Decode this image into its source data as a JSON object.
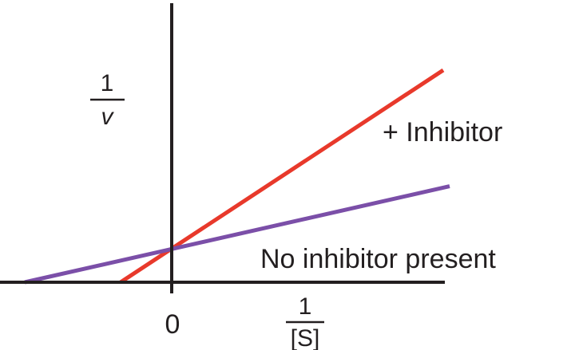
{
  "chart_data": {
    "type": "line",
    "title": "",
    "xlabel": {
      "numerator": "1",
      "denominator": "[S]"
    },
    "ylabel": {
      "numerator": "1",
      "denominator": "v"
    },
    "x_tick_labels": [
      "0"
    ],
    "xlim": [
      -0.55,
      0.85
    ],
    "ylim": [
      0,
      1.0
    ],
    "grid": false,
    "legend": "none (series labeled inline)",
    "series": [
      {
        "name": "+ Inhibitor",
        "color": "#e8392b",
        "x": [
          -0.16,
          0.85
        ],
        "y": [
          0,
          0.95
        ]
      },
      {
        "name": "No inhibitor present",
        "color": "#7b4fa8",
        "x": [
          -0.46,
          0.87
        ],
        "y": [
          0,
          0.43
        ]
      }
    ]
  }
}
